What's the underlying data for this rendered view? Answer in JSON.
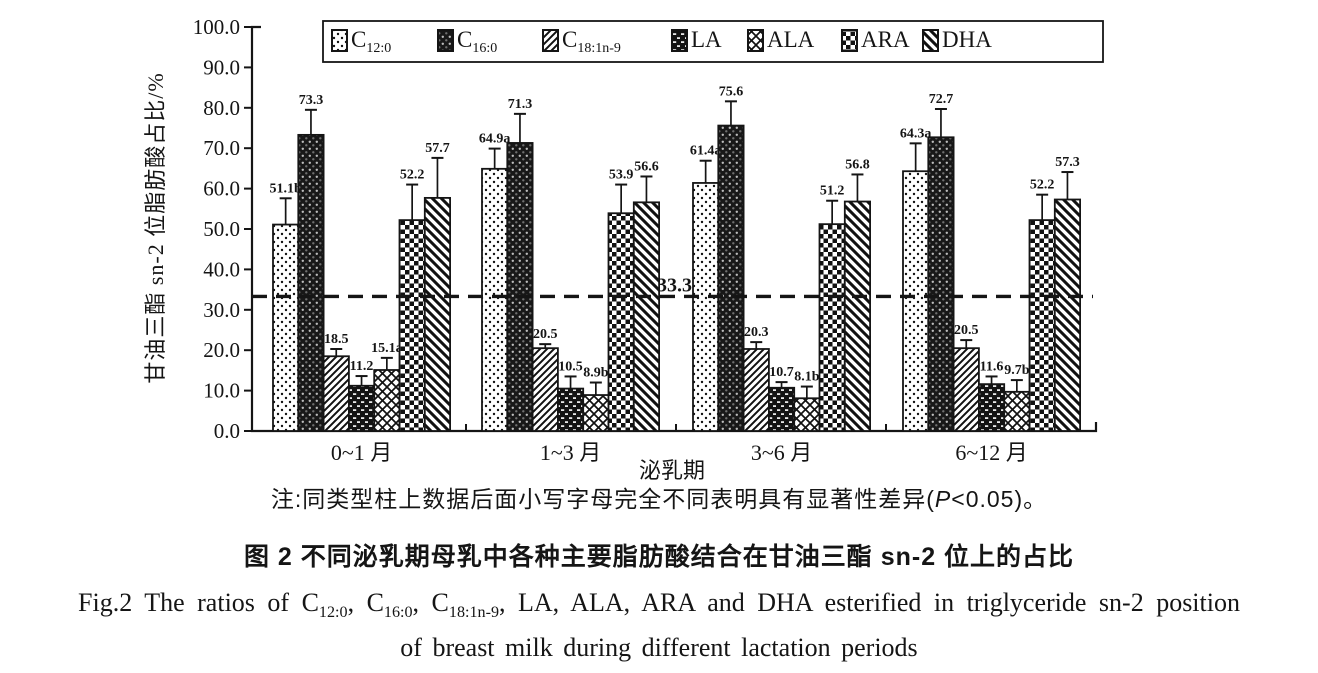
{
  "colors": {
    "ink": "#151515",
    "background": "#ffffff"
  },
  "figure": {
    "note_segments": [
      {
        "t": "注:同类型柱上数据后面小写字母完全不同表明具有显著性差异("
      },
      {
        "t": "P",
        "italic": true
      },
      {
        "t": "<0.05)。"
      }
    ],
    "caption_cn": "图 2  不同泌乳期母乳中各种主要脂肪酸结合在甘油三酯 sn-2 位上的占比",
    "caption_en_line1_segments": [
      {
        "t": "Fig.2  The ratios of "
      },
      {
        "t": "C",
        "sub": "12:0"
      },
      {
        "t": ", "
      },
      {
        "t": "C",
        "sub": "16:0"
      },
      {
        "t": ", "
      },
      {
        "t": "C",
        "sub": "18:1n-9"
      },
      {
        "t": ", LA, ALA, ARA and DHA esterified in triglyceride sn-2 position"
      }
    ],
    "caption_en_line2": "of breast milk during different lactation periods"
  },
  "chart_data": {
    "type": "bar",
    "title": "图 2  不同泌乳期母乳中各种主要脂肪酸结合在甘油三酯 sn-2 位上的占比",
    "ylabel": "甘油三酯 sn-2 位脂肪酸占比/%",
    "xlabel": "泌乳期",
    "ylim": [
      0,
      100
    ],
    "ytick_labels": [
      "0.0",
      "10.0",
      "20.0",
      "30.0",
      "40.0",
      "50.0",
      "60.0",
      "70.0",
      "80.0",
      "90.0",
      "100.0"
    ],
    "grid": false,
    "legend_position": "top",
    "categories": [
      "0~1 月",
      "1~3 月",
      "3~6 月",
      "6~12 月"
    ],
    "refline": {
      "value": 33.3,
      "label": "33.3"
    },
    "series": [
      {
        "name": "C12:0",
        "legend_base": "C",
        "legend_sub": "12:0",
        "pattern": "dots-light",
        "values": [
          51.1,
          64.9,
          61.4,
          64.3
        ],
        "bar_labels": [
          "51.1b",
          "64.9a",
          "61.4a",
          "64.3a"
        ],
        "errors_up": [
          6.5,
          5.0,
          5.5,
          6.9
        ]
      },
      {
        "name": "C16:0",
        "legend_base": "C",
        "legend_sub": "16:0",
        "pattern": "dark-weave",
        "values": [
          73.3,
          71.3,
          75.6,
          72.7
        ],
        "bar_labels": [
          "73.3",
          "71.3",
          "75.6",
          "72.7"
        ],
        "errors_up": [
          6.2,
          7.2,
          6.0,
          7.0
        ]
      },
      {
        "name": "C18:1n-9",
        "legend_base": "C",
        "legend_sub": "18:1n-9",
        "pattern": "diag-up",
        "values": [
          18.5,
          20.5,
          20.3,
          20.5
        ],
        "bar_labels": [
          "18.5",
          "20.5",
          "20.3",
          "20.5"
        ],
        "errors_up": [
          1.8,
          1.0,
          1.7,
          2.0
        ]
      },
      {
        "name": "LA",
        "legend_base": "LA",
        "legend_sub": "",
        "pattern": "dark-brick",
        "values": [
          11.2,
          10.5,
          10.7,
          11.6
        ],
        "bar_labels": [
          "11.2",
          "10.5",
          "10.7",
          "11.6"
        ],
        "errors_up": [
          2.4,
          3.0,
          1.4,
          1.9
        ]
      },
      {
        "name": "ALA",
        "legend_base": "ALA",
        "legend_sub": "",
        "pattern": "herringbone",
        "values": [
          15.1,
          8.9,
          8.1,
          9.7
        ],
        "bar_labels": [
          "15.1a",
          "8.9b",
          "8.1b",
          "9.7b"
        ],
        "errors_up": [
          3.0,
          3.1,
          2.9,
          2.9
        ]
      },
      {
        "name": "ARA",
        "legend_base": "ARA",
        "legend_sub": "",
        "pattern": "checker",
        "values": [
          52.2,
          53.9,
          51.2,
          52.2
        ],
        "bar_labels": [
          "52.2",
          "53.9",
          "51.2",
          "52.2"
        ],
        "errors_up": [
          8.8,
          7.1,
          5.8,
          6.3
        ]
      },
      {
        "name": "DHA",
        "legend_base": "DHA",
        "legend_sub": "",
        "pattern": "diag-down",
        "values": [
          57.7,
          56.6,
          56.8,
          57.3
        ],
        "bar_labels": [
          "57.7",
          "56.6",
          "56.8",
          "57.3"
        ],
        "errors_up": [
          9.9,
          6.4,
          6.7,
          6.8
        ]
      }
    ]
  }
}
